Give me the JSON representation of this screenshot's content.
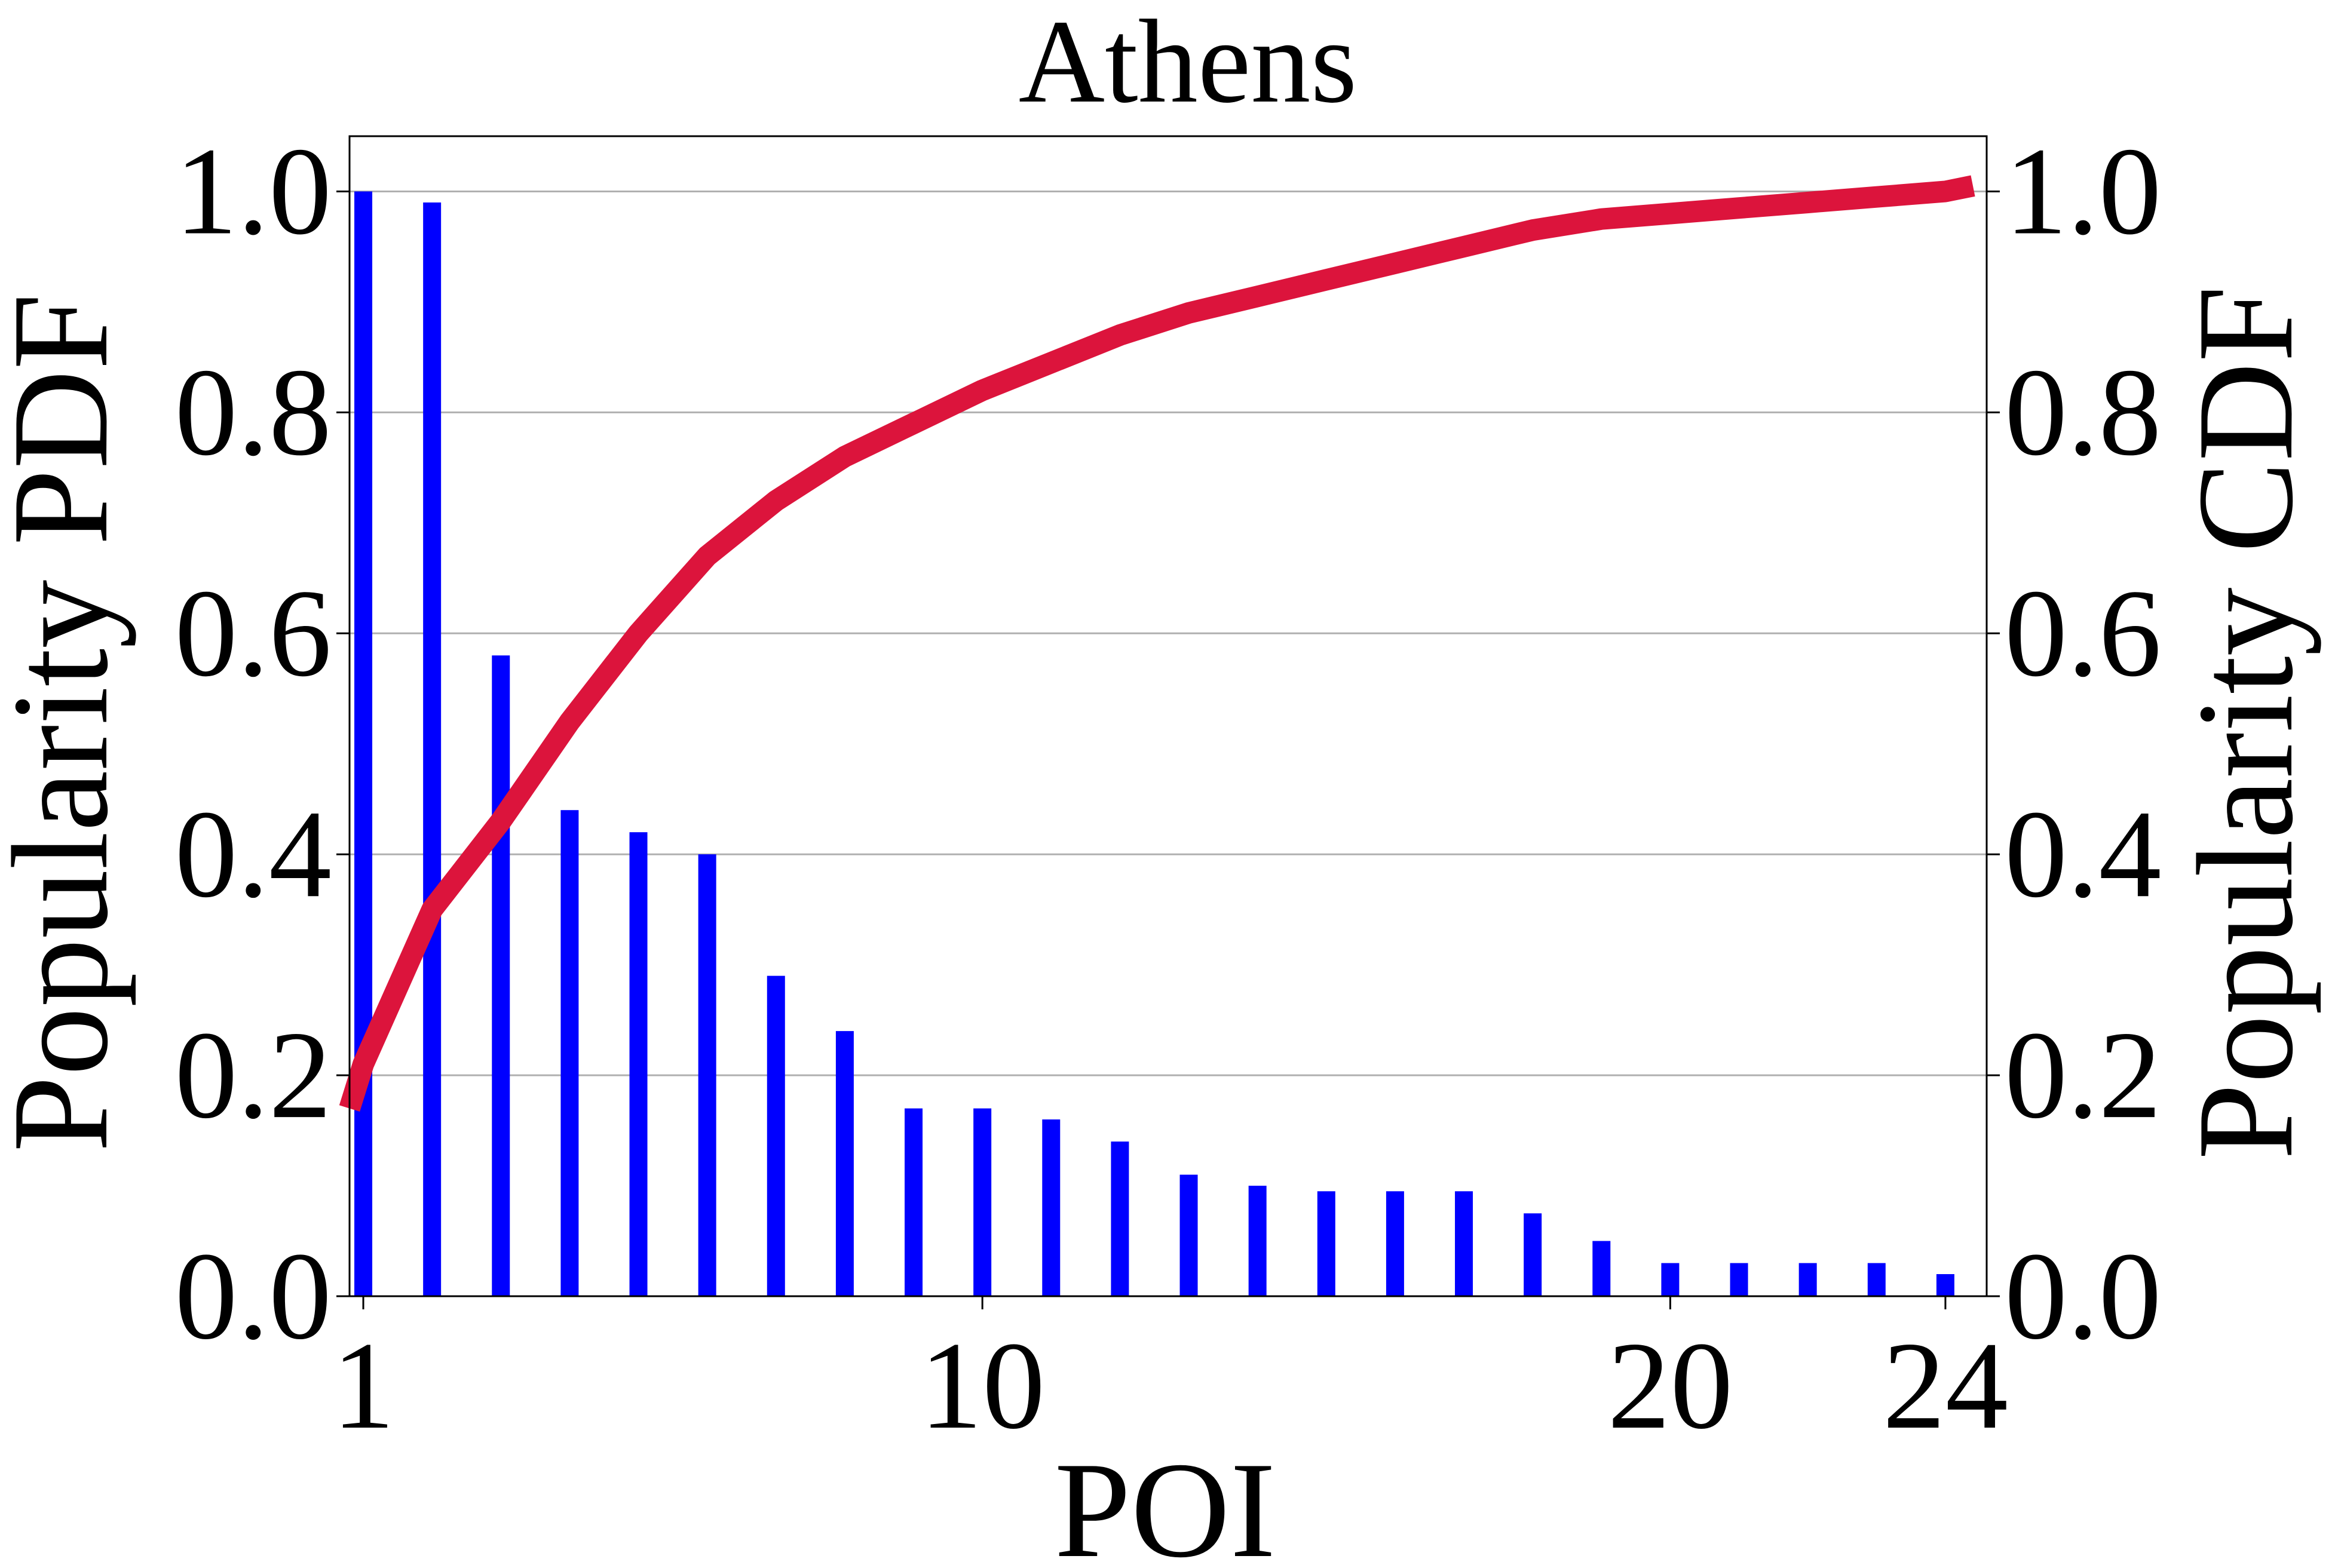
{
  "chart_data": {
    "type": "bar",
    "title": "Athens",
    "xlabel": "POI",
    "ylabel_left": "Popularity PDF",
    "ylabel_right": "Popularity CDF",
    "x_ticks": [
      "1",
      "10",
      "20",
      "24"
    ],
    "y_ticks_left": [
      "0.0",
      "0.2",
      "0.4",
      "0.6",
      "0.8",
      "1.0"
    ],
    "y_ticks_right": [
      "0.0",
      "0.2",
      "0.4",
      "0.6",
      "0.8",
      "1.0"
    ],
    "xlim": [
      0.8,
      24.6
    ],
    "ylim": [
      0,
      1.05
    ],
    "grid": "horizontal",
    "series": [
      {
        "type": "bar",
        "axis": "left",
        "color": "#0000ff",
        "x": [
          1,
          2,
          3,
          4,
          5,
          6,
          7,
          8,
          9,
          10,
          11,
          12,
          13,
          14,
          15,
          16,
          17,
          18,
          19,
          20,
          21,
          22,
          23,
          24
        ],
        "values": [
          1.0,
          0.99,
          0.58,
          0.44,
          0.42,
          0.4,
          0.29,
          0.24,
          0.17,
          0.17,
          0.16,
          0.14,
          0.11,
          0.1,
          0.095,
          0.095,
          0.095,
          0.075,
          0.05,
          0.03,
          0.03,
          0.03,
          0.03,
          0.02
        ]
      },
      {
        "type": "line",
        "axis": "right",
        "color": "#dc143c",
        "x": [
          0.8,
          1,
          2,
          3,
          4,
          5,
          6,
          7,
          8,
          9,
          10,
          11,
          12,
          13,
          14,
          15,
          16,
          17,
          18,
          19,
          20,
          21,
          22,
          23,
          24,
          24.4
        ],
        "values": [
          0.17,
          0.21,
          0.35,
          0.43,
          0.52,
          0.6,
          0.67,
          0.72,
          0.76,
          0.79,
          0.82,
          0.845,
          0.87,
          0.89,
          0.905,
          0.92,
          0.935,
          0.95,
          0.965,
          0.975,
          0.98,
          0.985,
          0.99,
          0.995,
          1.0,
          1.005
        ]
      }
    ]
  }
}
